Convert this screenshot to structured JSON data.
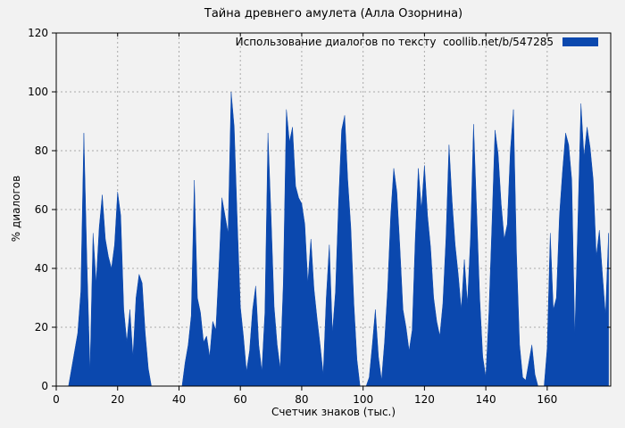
{
  "chart_data": {
    "type": "area",
    "title": "Тайна древнего амулета (Алла Озорнина)",
    "legend": "Использование диалогов по тексту  coollib.net/b/547285",
    "xlabel": "Счетчик знаков (тыс.)",
    "ylabel": "% диалогов",
    "xlim": [
      0,
      180.7
    ],
    "ylim": [
      0,
      120
    ],
    "x_ticks": [
      0,
      20,
      40,
      60,
      80,
      100,
      120,
      140,
      160
    ],
    "y_ticks": [
      0,
      20,
      40,
      60,
      80,
      100,
      120
    ],
    "grid": true,
    "legend_position": "top-right",
    "colors": {
      "series": "#0b48ae",
      "background": "#f2f2f2",
      "grid": "#aaaaaa",
      "axis": "#000000",
      "text": "#000000"
    },
    "x_start": 0,
    "x_step": 1,
    "values": [
      0,
      0,
      0,
      0,
      0,
      6,
      12,
      18,
      32,
      86,
      42,
      5,
      52,
      35,
      54,
      65,
      50,
      44,
      40,
      48,
      66,
      58,
      26,
      15,
      26,
      10,
      30,
      38,
      35,
      18,
      6,
      0,
      0,
      0,
      0,
      0,
      0,
      0,
      0,
      0,
      0,
      0,
      8,
      14,
      24,
      70,
      30,
      25,
      15,
      17,
      10,
      22,
      19,
      40,
      64,
      58,
      52,
      100,
      88,
      56,
      27,
      17,
      5,
      12,
      26,
      34,
      14,
      5,
      25,
      86,
      58,
      27,
      14,
      6,
      35,
      94,
      83,
      88,
      68,
      64,
      62,
      55,
      35,
      50,
      33,
      23,
      14,
      4,
      30,
      48,
      18,
      32,
      62,
      87,
      92,
      70,
      54,
      28,
      9,
      0,
      0,
      0,
      3,
      14,
      26,
      10,
      2,
      15,
      33,
      58,
      74,
      66,
      47,
      26,
      20,
      12,
      19,
      50,
      74,
      60,
      75,
      58,
      47,
      30,
      22,
      17,
      28,
      50,
      82,
      63,
      48,
      38,
      26,
      43,
      28,
      50,
      89,
      60,
      30,
      10,
      3,
      25,
      55,
      87,
      79,
      62,
      50,
      55,
      80,
      94,
      45,
      14,
      3,
      2,
      8,
      14,
      4,
      0,
      0,
      0,
      13,
      52,
      26,
      30,
      58,
      73,
      86,
      82,
      70,
      17,
      56,
      96,
      78,
      88,
      81,
      70,
      44,
      53,
      38,
      24,
      52
    ]
  }
}
